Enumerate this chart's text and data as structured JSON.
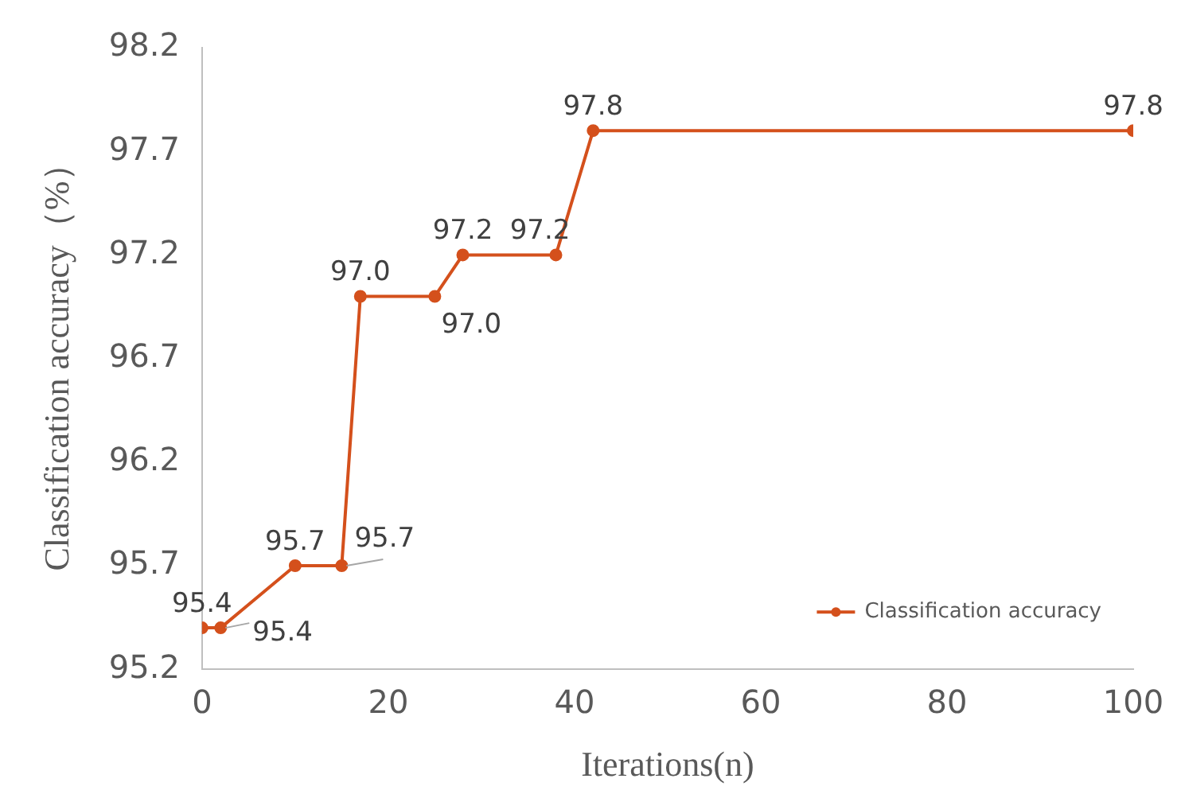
{
  "chart_data": {
    "type": "line",
    "xlabel": "Iterations(n)",
    "ylabel": "Classification accuracy（%）",
    "x": [
      0,
      2,
      10,
      15,
      17,
      25,
      28,
      38,
      42,
      100
    ],
    "series": [
      {
        "name": "Classification accuracy",
        "color": "#d4501c",
        "values": [
          95.4,
          95.4,
          95.7,
          95.7,
          97.0,
          97.0,
          97.2,
          97.2,
          97.8,
          97.8
        ],
        "value_labels": [
          "95.4",
          "95.4",
          "95.7",
          "95.7",
          "97.0",
          "97.0",
          "97.2",
          "97.2",
          "97.8",
          "97.8"
        ]
      }
    ],
    "xlim": [
      0,
      100
    ],
    "xticks": [
      0,
      20,
      40,
      60,
      80,
      100
    ],
    "ylim": [
      95.2,
      98.2
    ],
    "yticks": [
      95.2,
      95.7,
      96.2,
      96.7,
      97.2,
      97.7,
      98.2
    ],
    "grid": false,
    "legend": "bottom right",
    "marker": "circle",
    "line_style": "solid"
  }
}
